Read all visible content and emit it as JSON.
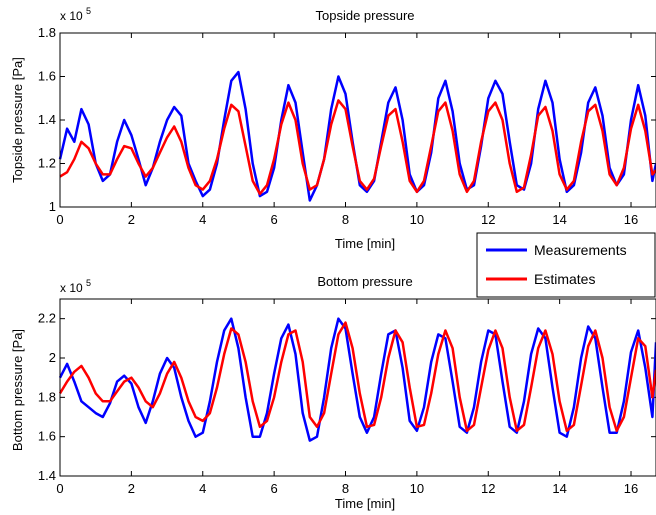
{
  "chart_data": [
    {
      "type": "line",
      "title": "Topside pressure",
      "xlabel": "Time [min]",
      "ylabel": "Topside pressure [Pa]",
      "y_multiplier_label": "x 10",
      "y_multiplier_exp": "5",
      "xlim": [
        0,
        16.7
      ],
      "ylim": [
        1.0,
        1.8
      ],
      "xticks": [
        0,
        2,
        4,
        6,
        8,
        10,
        12,
        14,
        16
      ],
      "yticks": [
        1.0,
        1.2,
        1.4,
        1.6,
        1.8
      ],
      "ytick_labels": [
        "1",
        "1.2",
        "1.4",
        "1.6",
        "1.8"
      ],
      "units": "x 10^5 Pa",
      "series": [
        {
          "name": "Measurements",
          "color": "#0000ff",
          "x": [
            0,
            0.2,
            0.4,
            0.6,
            0.8,
            1.0,
            1.2,
            1.4,
            1.6,
            1.8,
            2.0,
            2.2,
            2.4,
            2.6,
            2.8,
            3.0,
            3.2,
            3.4,
            3.6,
            3.8,
            4.0,
            4.2,
            4.4,
            4.6,
            4.8,
            5.0,
            5.2,
            5.4,
            5.6,
            5.8,
            6.0,
            6.2,
            6.4,
            6.6,
            6.8,
            7.0,
            7.2,
            7.4,
            7.6,
            7.8,
            8.0,
            8.2,
            8.4,
            8.6,
            8.8,
            9.0,
            9.2,
            9.4,
            9.6,
            9.8,
            10.0,
            10.2,
            10.4,
            10.6,
            10.8,
            11.0,
            11.2,
            11.4,
            11.6,
            11.8,
            12.0,
            12.2,
            12.4,
            12.6,
            12.8,
            13.0,
            13.2,
            13.4,
            13.6,
            13.8,
            14.0,
            14.2,
            14.4,
            14.6,
            14.8,
            15.0,
            15.2,
            15.4,
            15.6,
            15.8,
            16.0,
            16.2,
            16.4,
            16.6,
            16.7
          ],
          "y": [
            1.22,
            1.36,
            1.3,
            1.45,
            1.38,
            1.2,
            1.12,
            1.15,
            1.3,
            1.4,
            1.33,
            1.22,
            1.1,
            1.18,
            1.3,
            1.4,
            1.46,
            1.42,
            1.2,
            1.12,
            1.05,
            1.08,
            1.2,
            1.4,
            1.58,
            1.62,
            1.45,
            1.2,
            1.05,
            1.07,
            1.18,
            1.4,
            1.56,
            1.48,
            1.25,
            1.03,
            1.1,
            1.22,
            1.45,
            1.6,
            1.52,
            1.3,
            1.1,
            1.07,
            1.12,
            1.3,
            1.48,
            1.55,
            1.4,
            1.15,
            1.07,
            1.1,
            1.25,
            1.5,
            1.58,
            1.44,
            1.2,
            1.08,
            1.1,
            1.28,
            1.5,
            1.58,
            1.52,
            1.3,
            1.1,
            1.08,
            1.2,
            1.45,
            1.58,
            1.48,
            1.22,
            1.07,
            1.1,
            1.25,
            1.48,
            1.55,
            1.42,
            1.18,
            1.1,
            1.15,
            1.4,
            1.56,
            1.42,
            1.12,
            1.2
          ]
        },
        {
          "name": "Estimates",
          "color": "#ff0000",
          "x": [
            0,
            0.2,
            0.4,
            0.6,
            0.8,
            1.0,
            1.2,
            1.4,
            1.6,
            1.8,
            2.0,
            2.2,
            2.4,
            2.6,
            2.8,
            3.0,
            3.2,
            3.4,
            3.6,
            3.8,
            4.0,
            4.2,
            4.4,
            4.6,
            4.8,
            5.0,
            5.2,
            5.4,
            5.6,
            5.8,
            6.0,
            6.2,
            6.4,
            6.6,
            6.8,
            7.0,
            7.2,
            7.4,
            7.6,
            7.8,
            8.0,
            8.2,
            8.4,
            8.6,
            8.8,
            9.0,
            9.2,
            9.4,
            9.6,
            9.8,
            10.0,
            10.2,
            10.4,
            10.6,
            10.8,
            11.0,
            11.2,
            11.4,
            11.6,
            11.8,
            12.0,
            12.2,
            12.4,
            12.6,
            12.8,
            13.0,
            13.2,
            13.4,
            13.6,
            13.8,
            14.0,
            14.2,
            14.4,
            14.6,
            14.8,
            15.0,
            15.2,
            15.4,
            15.6,
            15.8,
            16.0,
            16.2,
            16.4,
            16.6,
            16.7
          ],
          "y": [
            1.14,
            1.16,
            1.22,
            1.3,
            1.27,
            1.2,
            1.15,
            1.15,
            1.22,
            1.28,
            1.27,
            1.2,
            1.14,
            1.18,
            1.25,
            1.32,
            1.37,
            1.3,
            1.18,
            1.1,
            1.08,
            1.12,
            1.22,
            1.36,
            1.47,
            1.44,
            1.28,
            1.12,
            1.06,
            1.1,
            1.22,
            1.38,
            1.48,
            1.4,
            1.2,
            1.08,
            1.1,
            1.22,
            1.38,
            1.49,
            1.45,
            1.28,
            1.12,
            1.08,
            1.13,
            1.28,
            1.42,
            1.45,
            1.3,
            1.12,
            1.07,
            1.12,
            1.28,
            1.44,
            1.48,
            1.35,
            1.15,
            1.07,
            1.12,
            1.3,
            1.44,
            1.48,
            1.4,
            1.2,
            1.07,
            1.09,
            1.24,
            1.42,
            1.46,
            1.35,
            1.15,
            1.08,
            1.12,
            1.3,
            1.44,
            1.47,
            1.35,
            1.15,
            1.1,
            1.18,
            1.36,
            1.47,
            1.35,
            1.15,
            1.17
          ]
        }
      ]
    },
    {
      "type": "line",
      "title": "Bottom pressure",
      "xlabel": "Time [min]",
      "ylabel": "Bottom pressure [Pa]",
      "y_multiplier_label": "x 10",
      "y_multiplier_exp": "5",
      "xlim": [
        0,
        16.7
      ],
      "ylim": [
        1.4,
        2.3
      ],
      "xticks": [
        0,
        2,
        4,
        6,
        8,
        10,
        12,
        14,
        16
      ],
      "yticks": [
        1.4,
        1.6,
        1.8,
        2.0,
        2.2
      ],
      "ytick_labels": [
        "1.4",
        "1.6",
        "1.8",
        "2",
        "2.2"
      ],
      "units": "x 10^5 Pa",
      "series": [
        {
          "name": "Measurements",
          "color": "#0000ff",
          "x": [
            0,
            0.2,
            0.4,
            0.6,
            0.8,
            1.0,
            1.2,
            1.4,
            1.6,
            1.8,
            2.0,
            2.2,
            2.4,
            2.6,
            2.8,
            3.0,
            3.2,
            3.4,
            3.6,
            3.8,
            4.0,
            4.2,
            4.4,
            4.6,
            4.8,
            5.0,
            5.2,
            5.4,
            5.6,
            5.8,
            6.0,
            6.2,
            6.4,
            6.6,
            6.8,
            7.0,
            7.2,
            7.4,
            7.6,
            7.8,
            8.0,
            8.2,
            8.4,
            8.6,
            8.8,
            9.0,
            9.2,
            9.4,
            9.6,
            9.8,
            10.0,
            10.2,
            10.4,
            10.6,
            10.8,
            11.0,
            11.2,
            11.4,
            11.6,
            11.8,
            12.0,
            12.2,
            12.4,
            12.6,
            12.8,
            13.0,
            13.2,
            13.4,
            13.6,
            13.8,
            14.0,
            14.2,
            14.4,
            14.6,
            14.8,
            15.0,
            15.2,
            15.4,
            15.6,
            15.8,
            16.0,
            16.2,
            16.4,
            16.6,
            16.7
          ],
          "y": [
            1.9,
            1.97,
            1.88,
            1.78,
            1.75,
            1.72,
            1.7,
            1.77,
            1.88,
            1.91,
            1.87,
            1.75,
            1.67,
            1.78,
            1.92,
            2.0,
            1.95,
            1.8,
            1.68,
            1.6,
            1.62,
            1.78,
            1.98,
            2.14,
            2.2,
            2.05,
            1.8,
            1.6,
            1.6,
            1.72,
            1.92,
            2.1,
            2.17,
            2.02,
            1.72,
            1.58,
            1.6,
            1.8,
            2.05,
            2.2,
            2.15,
            1.92,
            1.7,
            1.62,
            1.7,
            1.92,
            2.12,
            2.14,
            1.95,
            1.68,
            1.63,
            1.75,
            1.98,
            2.12,
            2.1,
            1.88,
            1.65,
            1.62,
            1.75,
            1.98,
            2.14,
            2.12,
            1.88,
            1.65,
            1.62,
            1.78,
            2.02,
            2.15,
            2.1,
            1.85,
            1.62,
            1.6,
            1.75,
            2.0,
            2.16,
            2.1,
            1.85,
            1.62,
            1.62,
            1.78,
            2.03,
            2.14,
            1.95,
            1.7,
            2.08
          ]
        },
        {
          "name": "Estimates",
          "color": "#ff0000",
          "x": [
            0,
            0.2,
            0.4,
            0.6,
            0.8,
            1.0,
            1.2,
            1.4,
            1.6,
            1.8,
            2.0,
            2.2,
            2.4,
            2.6,
            2.8,
            3.0,
            3.2,
            3.4,
            3.6,
            3.8,
            4.0,
            4.2,
            4.4,
            4.6,
            4.8,
            5.0,
            5.2,
            5.4,
            5.6,
            5.8,
            6.0,
            6.2,
            6.4,
            6.6,
            6.8,
            7.0,
            7.2,
            7.4,
            7.6,
            7.8,
            8.0,
            8.2,
            8.4,
            8.6,
            8.8,
            9.0,
            9.2,
            9.4,
            9.6,
            9.8,
            10.0,
            10.2,
            10.4,
            10.6,
            10.8,
            11.0,
            11.2,
            11.4,
            11.6,
            11.8,
            12.0,
            12.2,
            12.4,
            12.6,
            12.8,
            13.0,
            13.2,
            13.4,
            13.6,
            13.8,
            14.0,
            14.2,
            14.4,
            14.6,
            14.8,
            15.0,
            15.2,
            15.4,
            15.6,
            15.8,
            16.0,
            16.2,
            16.4,
            16.6,
            16.7
          ],
          "y": [
            1.82,
            1.88,
            1.93,
            1.96,
            1.9,
            1.82,
            1.78,
            1.78,
            1.83,
            1.88,
            1.9,
            1.85,
            1.78,
            1.75,
            1.82,
            1.92,
            1.98,
            1.9,
            1.78,
            1.7,
            1.68,
            1.72,
            1.85,
            2.02,
            2.15,
            2.12,
            1.98,
            1.78,
            1.65,
            1.68,
            1.8,
            1.98,
            2.12,
            2.14,
            1.98,
            1.7,
            1.65,
            1.72,
            1.92,
            2.12,
            2.18,
            2.05,
            1.82,
            1.65,
            1.66,
            1.8,
            2.0,
            2.14,
            2.08,
            1.85,
            1.65,
            1.66,
            1.82,
            2.02,
            2.14,
            2.05,
            1.8,
            1.63,
            1.66,
            1.85,
            2.04,
            2.14,
            2.05,
            1.8,
            1.63,
            1.66,
            1.85,
            2.05,
            2.14,
            2.02,
            1.78,
            1.63,
            1.66,
            1.86,
            2.06,
            2.14,
            2.0,
            1.75,
            1.63,
            1.7,
            1.9,
            2.1,
            2.06,
            1.8,
            1.94
          ]
        }
      ]
    }
  ],
  "legend": {
    "items": [
      {
        "label": "Measurements",
        "color": "#0000ff"
      },
      {
        "label": "Estimates",
        "color": "#ff0000"
      }
    ]
  }
}
